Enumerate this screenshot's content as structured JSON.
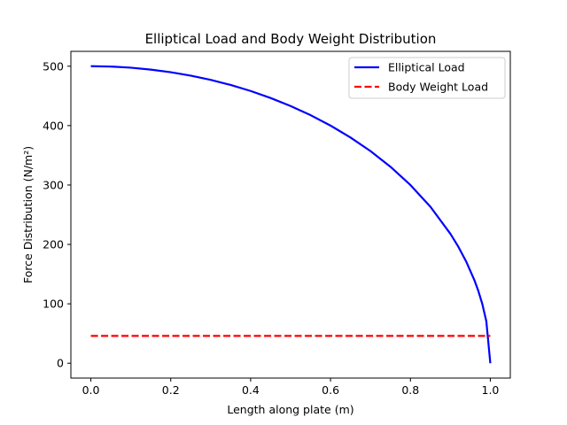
{
  "chart_data": {
    "type": "line",
    "title": "Elliptical Load and Body Weight Distribution",
    "xlabel": "Length along plate (m)",
    "ylabel": "Force Distribution (N/m²)",
    "xlim": [
      -0.05,
      1.05
    ],
    "ylim": [
      -25,
      525
    ],
    "xticks": [
      0.0,
      0.2,
      0.4,
      0.6,
      0.8,
      1.0
    ],
    "xtick_labels": [
      "0.0",
      "0.2",
      "0.4",
      "0.6",
      "0.8",
      "1.0"
    ],
    "yticks": [
      0,
      100,
      200,
      300,
      400,
      500
    ],
    "ytick_labels": [
      "0",
      "100",
      "200",
      "300",
      "400",
      "500"
    ],
    "grid": false,
    "legend": "top-right",
    "series": [
      {
        "name": "Elliptical Load",
        "color": "#0000ff",
        "style": "solid",
        "x": [
          0.0,
          0.05,
          0.1,
          0.15,
          0.2,
          0.25,
          0.3,
          0.35,
          0.4,
          0.45,
          0.5,
          0.55,
          0.6,
          0.65,
          0.7,
          0.75,
          0.8,
          0.85,
          0.9,
          0.92,
          0.94,
          0.96,
          0.97,
          0.98,
          0.99,
          1.0
        ],
        "y": [
          500,
          499.4,
          497.5,
          494.3,
          489.9,
          484.1,
          477,
          468.4,
          458.3,
          446.5,
          433,
          417.6,
          400,
          380,
          357.1,
          330.7,
          300,
          263.4,
          217.9,
          196,
          170.6,
          140,
          121.6,
          99.5,
          70.5,
          0
        ]
      },
      {
        "name": "Body Weight Load",
        "color": "#ff0000",
        "style": "dashed",
        "x": [
          0.0,
          1.0
        ],
        "y": [
          46,
          46
        ]
      }
    ]
  }
}
